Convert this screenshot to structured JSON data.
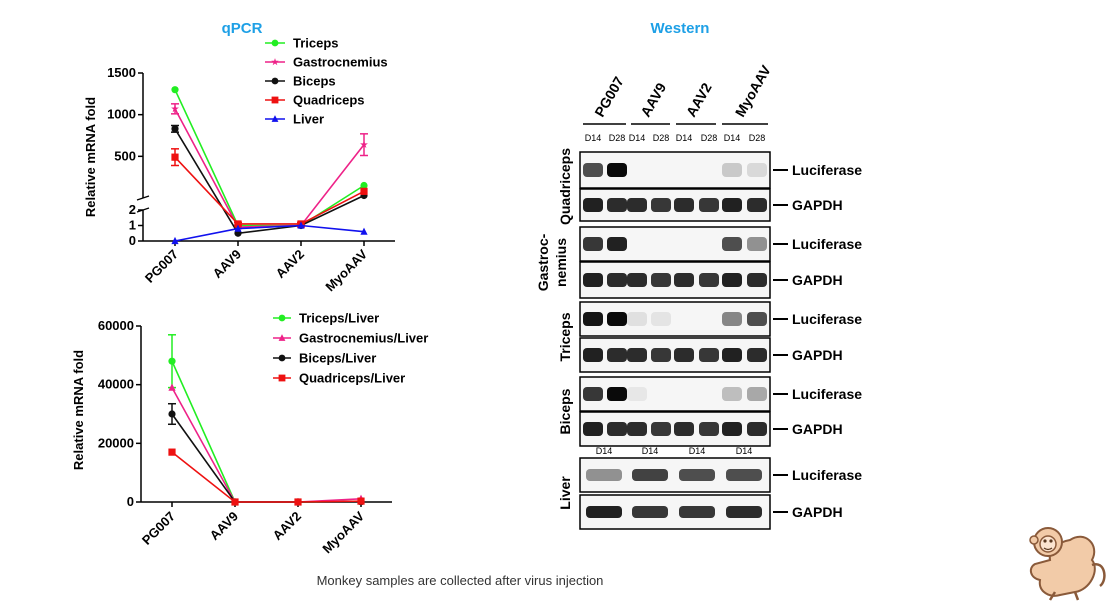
{
  "titles": {
    "qpcr": "qPCR",
    "western": "Western"
  },
  "caption": "Monkey samples are collected after virus injection",
  "chart_data": [
    {
      "type": "line",
      "ylabel": "Relative mRNA  fold",
      "categories": [
        "PG007",
        "AAV9",
        "AAV2",
        "MyoAAV"
      ],
      "broken_axis": {
        "lower": [
          0,
          2
        ],
        "upper": [
          0,
          1500
        ]
      },
      "upper_ticks": [
        500,
        1000,
        1500
      ],
      "lower_ticks": [
        0,
        1,
        2
      ],
      "series": [
        {
          "name": "Triceps",
          "color": "#22ee22",
          "marker": "circle",
          "values": [
            1300,
            1.0,
            1.0,
            150
          ]
        },
        {
          "name": "Gastrocnemius",
          "color": "#ee2288",
          "marker": "star",
          "values": [
            1070,
            0.9,
            1.0,
            640
          ],
          "err": [
            60,
            0.1,
            0.1,
            130
          ]
        },
        {
          "name": "Biceps",
          "color": "#111111",
          "marker": "circle",
          "values": [
            830,
            0.5,
            1.0,
            30
          ],
          "err": [
            40,
            0,
            0,
            0
          ]
        },
        {
          "name": "Quadriceps",
          "color": "#ee1111",
          "marker": "square",
          "values": [
            490,
            1.1,
            1.1,
            80
          ],
          "err": [
            100,
            0.1,
            0.1,
            0
          ]
        },
        {
          "name": "Liver",
          "color": "#1111ee",
          "marker": "triangle",
          "values": [
            0,
            0.8,
            1.0,
            0.6
          ]
        }
      ]
    },
    {
      "type": "line",
      "ylabel": "Relative mRNA  fold",
      "categories": [
        "PG007",
        "AAV9",
        "AAV2",
        "MyoAAV"
      ],
      "ylim": [
        0,
        60000
      ],
      "yticks": [
        0,
        20000,
        40000,
        60000
      ],
      "series": [
        {
          "name": "Triceps/Liver",
          "color": "#22ee22",
          "marker": "circle",
          "values": [
            48000,
            0,
            0,
            200
          ],
          "err": [
            9000,
            0,
            0,
            0
          ]
        },
        {
          "name": "Gastrocnemius/Liver",
          "color": "#ee2288",
          "marker": "triangle",
          "values": [
            39000,
            0,
            0,
            1100
          ]
        },
        {
          "name": "Biceps/Liver",
          "color": "#111111",
          "marker": "circle",
          "values": [
            30000,
            0,
            0,
            100
          ],
          "err": [
            3500,
            0,
            0,
            0
          ]
        },
        {
          "name": "Quadriceps/Liver",
          "color": "#ee1111",
          "marker": "square",
          "values": [
            17000,
            0,
            0,
            300
          ]
        }
      ]
    }
  ],
  "western": {
    "groups": [
      "PG007",
      "AAV9",
      "AAV2",
      "MyoAAV"
    ],
    "timepoints": [
      "D14",
      "D28"
    ],
    "band_labels": {
      "luc": "Luciferase",
      "gapdh": "GAPDH"
    },
    "tissues": [
      {
        "name": "Quadriceps",
        "luc": [
          0.7,
          1.0,
          0,
          0,
          0,
          0,
          0.15,
          0.08
        ]
      },
      {
        "name": "Gastroc-nemius",
        "line1": "Gastroc-",
        "line2": "nemius",
        "luc": [
          0.8,
          0.9,
          0,
          0,
          0,
          0,
          0.7,
          0.4
        ]
      },
      {
        "name": "Triceps",
        "luc": [
          0.95,
          1.0,
          0.05,
          0.03,
          0,
          0,
          0.45,
          0.7
        ]
      },
      {
        "name": "Biceps",
        "luc": [
          0.8,
          1.0,
          0.02,
          0,
          0,
          0,
          0.2,
          0.3
        ]
      }
    ],
    "liver": {
      "name": "Liver",
      "timepoint": "D14",
      "luc": [
        0.4,
        0.75,
        0.7,
        0.7
      ]
    }
  }
}
